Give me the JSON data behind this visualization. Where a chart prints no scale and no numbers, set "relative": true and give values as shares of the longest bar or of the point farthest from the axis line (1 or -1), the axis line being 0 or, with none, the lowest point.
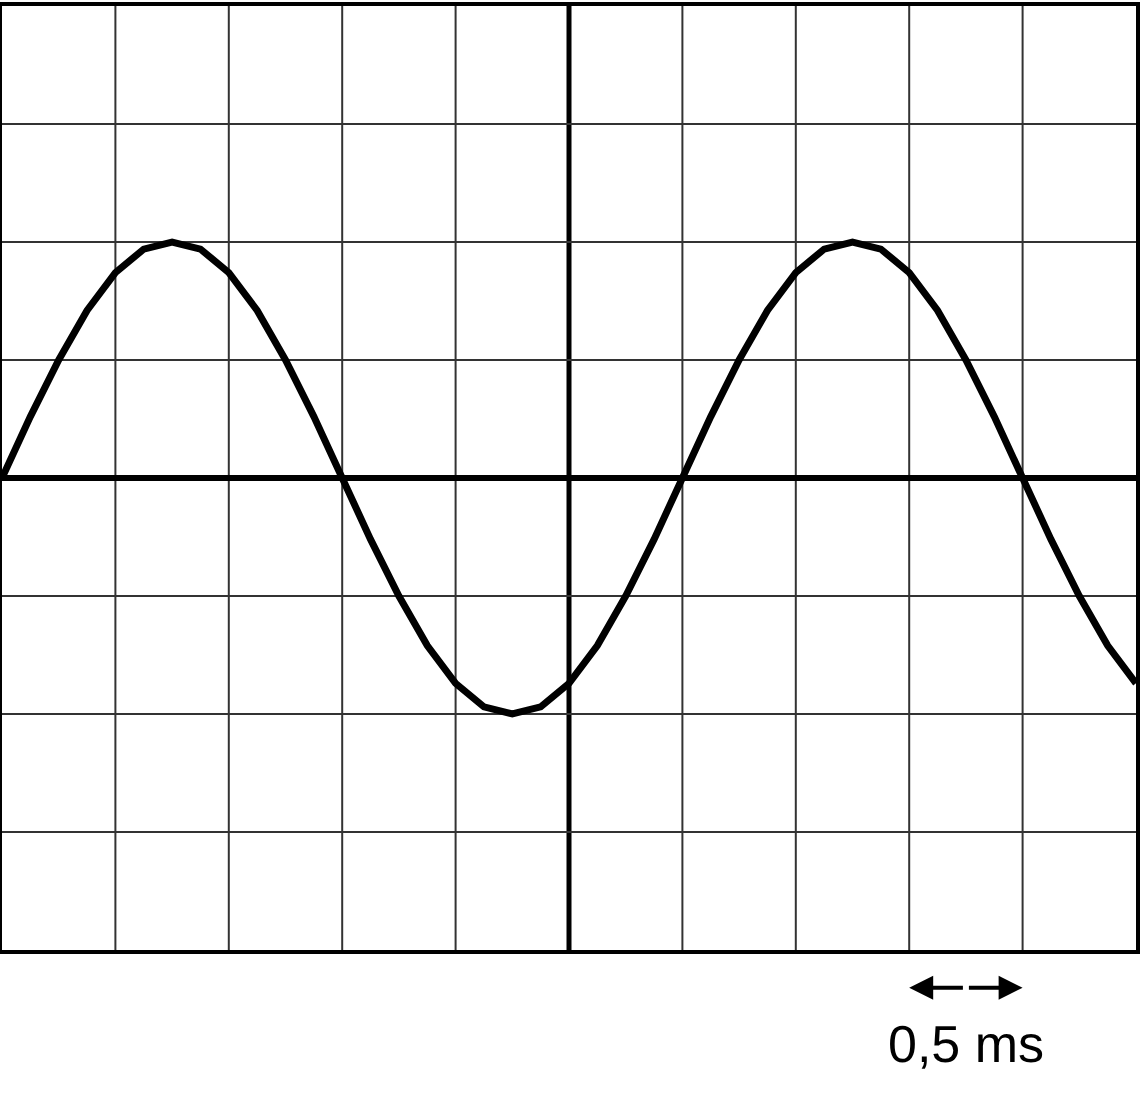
{
  "chart_data": {
    "type": "line",
    "relative": true,
    "categories": [
      null,
      null,
      null,
      null,
      null,
      null,
      null,
      null,
      null,
      null,
      null,
      null,
      null,
      null,
      null,
      null,
      null,
      null,
      null,
      null,
      null,
      null,
      null,
      null,
      null,
      null,
      null,
      null,
      null,
      null,
      null,
      null,
      null,
      null,
      null,
      null,
      null,
      null,
      null,
      null,
      null
    ],
    "series": [
      {
        "color": "#000000",
        "values": [
          0,
          0.26,
          0.5,
          0.71,
          0.87,
          0.97,
          1,
          0.97,
          0.87,
          0.71,
          0.5,
          0.26,
          0,
          -0.26,
          -0.5,
          -0.71,
          -0.87,
          -0.97,
          -1,
          -0.97,
          -0.87,
          -0.71,
          -0.5,
          -0.26,
          0,
          0.26,
          0.5,
          0.71,
          0.87,
          0.97,
          1,
          0.97,
          0.87,
          0.71,
          0.5,
          0.26,
          0,
          -0.26,
          -0.5,
          -0.71,
          -0.87
        ]
      }
    ],
    "grid": true,
    "marker": "none",
    "line_style": "solid",
    "annotations": [
      "0,5 ms"
    ]
  }
}
